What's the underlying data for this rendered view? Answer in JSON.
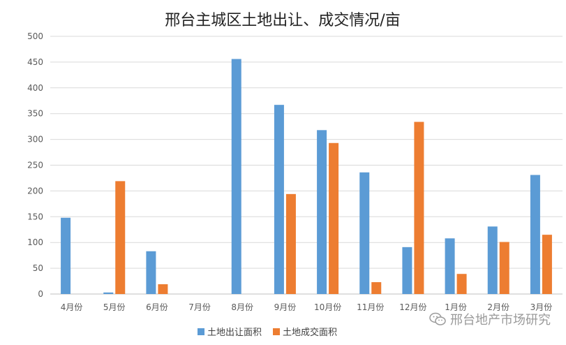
{
  "chart_data": {
    "type": "bar",
    "title": "邢台主城区土地出让、成交情况/亩",
    "categories": [
      "4月份",
      "5月份",
      "6月份",
      "7月份",
      "8月份",
      "9月份",
      "10月份",
      "11月份",
      "12月份",
      "1月份",
      "2月份",
      "3月份"
    ],
    "series": [
      {
        "name": "土地出让面积",
        "color": "#5b9bd5",
        "values": [
          148,
          3,
          83,
          0,
          456,
          367,
          318,
          236,
          91,
          108,
          131,
          231
        ]
      },
      {
        "name": "土地成交面积",
        "color": "#ed7d31",
        "values": [
          0,
          219,
          19,
          0,
          0,
          194,
          293,
          23,
          334,
          39,
          101,
          115
        ]
      }
    ],
    "ylim": [
      0,
      500
    ],
    "yticks": [
      0,
      50,
      100,
      150,
      200,
      250,
      300,
      350,
      400,
      450,
      500
    ],
    "xlabel": "",
    "ylabel": "",
    "grid": true,
    "legend_position": "bottom"
  },
  "watermark": {
    "text": "邢台地产市场研究",
    "icon": "wechat-icon"
  }
}
